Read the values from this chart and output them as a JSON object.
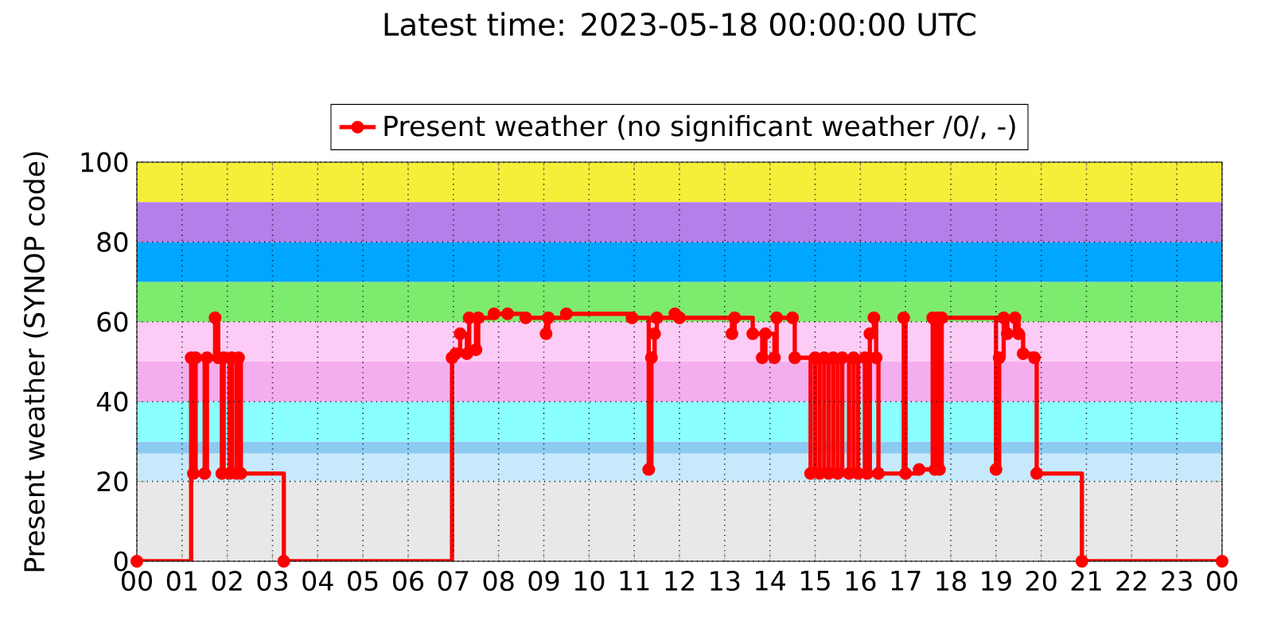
{
  "chart_data": {
    "type": "step",
    "title": "Latest time: 2023-05-18 00:00:00 UTC",
    "ylabel": "Present weather (SYNOP code)",
    "series": [
      {
        "name": "Present weather (no significant weather /0/, -)",
        "color": "#ff0000",
        "x": [
          0,
          1.2,
          1.25,
          1.3,
          1.5,
          1.55,
          1.73,
          1.8,
          1.88,
          1.92,
          2.05,
          2.1,
          2.2,
          2.25,
          2.3,
          3.25,
          6.97,
          7.05,
          7.15,
          7.3,
          7.35,
          7.5,
          7.55,
          7.9,
          8.2,
          8.6,
          9.05,
          9.1,
          9.5,
          10.95,
          11.32,
          11.38,
          11.45,
          11.5,
          11.9,
          12.0,
          13.16,
          13.22,
          13.62,
          13.83,
          13.9,
          14.1,
          14.15,
          14.5,
          14.55,
          14.9,
          15.0,
          15.1,
          15.2,
          15.3,
          15.4,
          15.5,
          15.6,
          15.75,
          15.85,
          15.95,
          16.1,
          16.15,
          16.21,
          16.3,
          16.35,
          16.4,
          16.96,
          17.0,
          17.3,
          17.6,
          17.65,
          17.7,
          17.75,
          17.8,
          19.0,
          19.07,
          19.17,
          19.25,
          19.42,
          19.5,
          19.6,
          19.85,
          19.9,
          20.9,
          24
        ],
        "values": [
          0,
          51,
          22,
          51,
          22,
          51,
          61,
          51,
          22,
          51,
          22,
          51,
          22,
          51,
          22,
          0,
          51,
          52,
          57,
          52,
          61,
          53,
          61,
          62,
          62,
          61,
          57,
          61,
          62,
          61,
          23,
          51,
          57,
          61,
          62,
          61,
          57,
          61,
          57,
          51,
          57,
          51,
          61,
          61,
          51,
          22,
          51,
          22,
          51,
          22,
          51,
          22,
          51,
          22,
          51,
          22,
          51,
          22,
          57,
          61,
          51,
          22,
          61,
          22,
          23,
          61,
          23,
          61,
          23,
          61,
          23,
          51,
          61,
          57,
          61,
          57,
          52,
          51,
          22,
          0,
          0
        ]
      }
    ],
    "xlim": [
      0,
      24
    ],
    "ylim": [
      0,
      100
    ],
    "xticks": [
      {
        "value": 0,
        "label": "00"
      },
      {
        "value": 1,
        "label": "01"
      },
      {
        "value": 2,
        "label": "02"
      },
      {
        "value": 3,
        "label": "03"
      },
      {
        "value": 4,
        "label": "04"
      },
      {
        "value": 5,
        "label": "05"
      },
      {
        "value": 6,
        "label": "06"
      },
      {
        "value": 7,
        "label": "07"
      },
      {
        "value": 8,
        "label": "08"
      },
      {
        "value": 9,
        "label": "09"
      },
      {
        "value": 10,
        "label": "10"
      },
      {
        "value": 11,
        "label": "11"
      },
      {
        "value": 12,
        "label": "12"
      },
      {
        "value": 13,
        "label": "13"
      },
      {
        "value": 14,
        "label": "14"
      },
      {
        "value": 15,
        "label": "15"
      },
      {
        "value": 16,
        "label": "16"
      },
      {
        "value": 17,
        "label": "17"
      },
      {
        "value": 18,
        "label": "18"
      },
      {
        "value": 19,
        "label": "19"
      },
      {
        "value": 20,
        "label": "20"
      },
      {
        "value": 21,
        "label": "21"
      },
      {
        "value": 22,
        "label": "22"
      },
      {
        "value": 23,
        "label": "23"
      },
      {
        "value": 24,
        "label": "00"
      }
    ],
    "yticks": [
      0,
      20,
      40,
      60,
      80,
      100
    ],
    "bands": [
      {
        "axis": "y",
        "from": 0,
        "to": 20,
        "color": "#e8e8e8"
      },
      {
        "axis": "y",
        "from": 20,
        "to": 27,
        "color": "#c6e9fb"
      },
      {
        "axis": "y",
        "from": 27,
        "to": 30,
        "color": "#8ccaf2"
      },
      {
        "axis": "y",
        "from": 30,
        "to": 40,
        "color": "#8affff"
      },
      {
        "axis": "y",
        "from": 40,
        "to": 50,
        "color": "#f4aeee"
      },
      {
        "axis": "y",
        "from": 50,
        "to": 60,
        "color": "#fdccf6"
      },
      {
        "axis": "y",
        "from": 60,
        "to": 70,
        "color": "#7deb6e"
      },
      {
        "axis": "y",
        "from": 70,
        "to": 80,
        "color": "#00a6ff"
      },
      {
        "axis": "y",
        "from": 80,
        "to": 90,
        "color": "#b57fea"
      },
      {
        "axis": "y",
        "from": 90,
        "to": 100,
        "color": "#f6ef3a"
      }
    ],
    "grid": true,
    "legend": "top",
    "marker": "circle",
    "line_style": "solid"
  }
}
